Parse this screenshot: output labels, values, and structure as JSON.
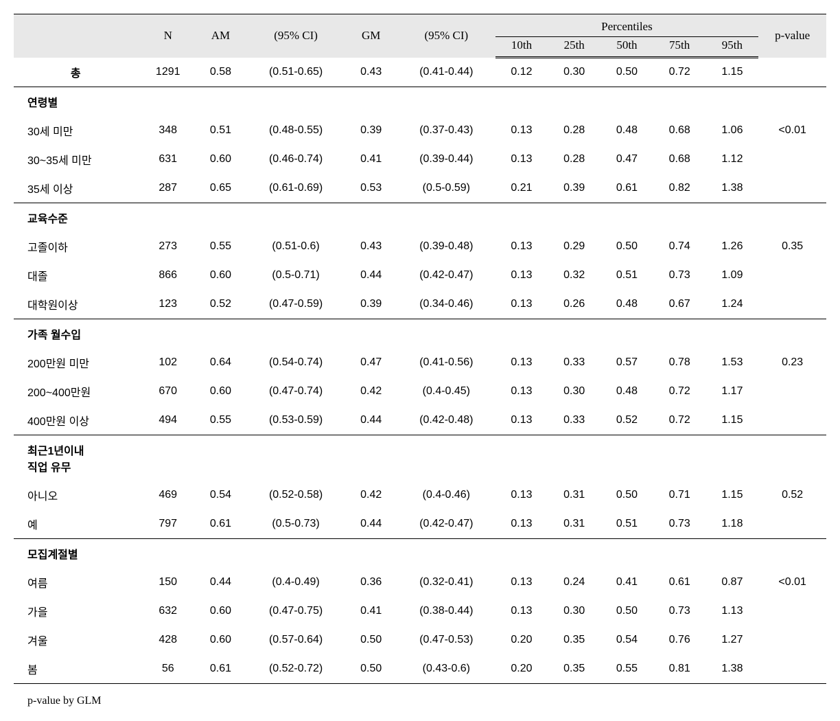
{
  "headers": {
    "blank": "",
    "n": "N",
    "am": "AM",
    "ci1": "(95% CI)",
    "gm": "GM",
    "ci2": "(95% CI)",
    "percentiles": "Percentiles",
    "pvalue": "p-value",
    "p10": "10th",
    "p25": "25th",
    "p50": "50th",
    "p75": "75th",
    "p95": "95th"
  },
  "total": {
    "label": "총",
    "n": "1291",
    "am": "0.58",
    "ci1": "(0.51-0.65)",
    "gm": "0.43",
    "ci2": "(0.41-0.44)",
    "p10": "0.12",
    "p25": "0.30",
    "p50": "0.50",
    "p75": "0.72",
    "p95": "1.15",
    "pvalue": ""
  },
  "sections": [
    {
      "title": "연령별",
      "pvalue": "<0.01",
      "rows": [
        {
          "label": "30세 미만",
          "n": "348",
          "am": "0.51",
          "ci1": "(0.48-0.55)",
          "gm": "0.39",
          "ci2": "(0.37-0.43)",
          "p10": "0.13",
          "p25": "0.28",
          "p50": "0.48",
          "p75": "0.68",
          "p95": "1.06"
        },
        {
          "label": "30~35세 미만",
          "n": "631",
          "am": "0.60",
          "ci1": "(0.46-0.74)",
          "gm": "0.41",
          "ci2": "(0.39-0.44)",
          "p10": "0.13",
          "p25": "0.28",
          "p50": "0.47",
          "p75": "0.68",
          "p95": "1.12"
        },
        {
          "label": "35세 이상",
          "n": "287",
          "am": "0.65",
          "ci1": "(0.61-0.69)",
          "gm": "0.53",
          "ci2": "(0.5-0.59)",
          "p10": "0.21",
          "p25": "0.39",
          "p50": "0.61",
          "p75": "0.82",
          "p95": "1.38"
        }
      ]
    },
    {
      "title": "교육수준",
      "pvalue": "0.35",
      "rows": [
        {
          "label": "고졸이하",
          "n": "273",
          "am": "0.55",
          "ci1": "(0.51-0.6)",
          "gm": "0.43",
          "ci2": "(0.39-0.48)",
          "p10": "0.13",
          "p25": "0.29",
          "p50": "0.50",
          "p75": "0.74",
          "p95": "1.26"
        },
        {
          "label": "대졸",
          "n": "866",
          "am": "0.60",
          "ci1": "(0.5-0.71)",
          "gm": "0.44",
          "ci2": "(0.42-0.47)",
          "p10": "0.13",
          "p25": "0.32",
          "p50": "0.51",
          "p75": "0.73",
          "p95": "1.09"
        },
        {
          "label": "대학원이상",
          "n": "123",
          "am": "0.52",
          "ci1": "(0.47-0.59)",
          "gm": "0.39",
          "ci2": "(0.34-0.46)",
          "p10": "0.13",
          "p25": "0.26",
          "p50": "0.48",
          "p75": "0.67",
          "p95": "1.24"
        }
      ]
    },
    {
      "title": "가족 월수입",
      "pvalue": "0.23",
      "rows": [
        {
          "label": "200만원 미만",
          "n": "102",
          "am": "0.64",
          "ci1": "(0.54-0.74)",
          "gm": "0.47",
          "ci2": "(0.41-0.56)",
          "p10": "0.13",
          "p25": "0.33",
          "p50": "0.57",
          "p75": "0.78",
          "p95": "1.53"
        },
        {
          "label": "200~400만원",
          "n": "670",
          "am": "0.60",
          "ci1": "(0.47-0.74)",
          "gm": "0.42",
          "ci2": "(0.4-0.45)",
          "p10": "0.13",
          "p25": "0.30",
          "p50": "0.48",
          "p75": "0.72",
          "p95": "1.17"
        },
        {
          "label": "400만원 이상",
          "n": "494",
          "am": "0.55",
          "ci1": "(0.53-0.59)",
          "gm": "0.44",
          "ci2": "(0.42-0.48)",
          "p10": "0.13",
          "p25": "0.33",
          "p50": "0.52",
          "p75": "0.72",
          "p95": "1.15"
        }
      ]
    },
    {
      "title": "최근1년이내 직업 유무",
      "title_multiline": true,
      "title_line1": "최근1년이내",
      "title_line2": "직업 유무",
      "pvalue": "0.52",
      "rows": [
        {
          "label": "아니오",
          "n": "469",
          "am": "0.54",
          "ci1": "(0.52-0.58)",
          "gm": "0.42",
          "ci2": "(0.4-0.46)",
          "p10": "0.13",
          "p25": "0.31",
          "p50": "0.50",
          "p75": "0.71",
          "p95": "1.15"
        },
        {
          "label": "예",
          "n": "797",
          "am": "0.61",
          "ci1": "(0.5-0.73)",
          "gm": "0.44",
          "ci2": "(0.42-0.47)",
          "p10": "0.13",
          "p25": "0.31",
          "p50": "0.51",
          "p75": "0.73",
          "p95": "1.18"
        }
      ]
    },
    {
      "title": "모집계절별",
      "pvalue": "<0.01",
      "rows": [
        {
          "label": "여름",
          "n": "150",
          "am": "0.44",
          "ci1": "(0.4-0.49)",
          "gm": "0.36",
          "ci2": "(0.32-0.41)",
          "p10": "0.13",
          "p25": "0.24",
          "p50": "0.41",
          "p75": "0.61",
          "p95": "0.87"
        },
        {
          "label": "가을",
          "n": "632",
          "am": "0.60",
          "ci1": "(0.47-0.75)",
          "gm": "0.41",
          "ci2": "(0.38-0.44)",
          "p10": "0.13",
          "p25": "0.30",
          "p50": "0.50",
          "p75": "0.73",
          "p95": "1.13"
        },
        {
          "label": "겨울",
          "n": "428",
          "am": "0.60",
          "ci1": "(0.57-0.64)",
          "gm": "0.50",
          "ci2": "(0.47-0.53)",
          "p10": "0.20",
          "p25": "0.35",
          "p50": "0.54",
          "p75": "0.76",
          "p95": "1.27"
        },
        {
          "label": "봄",
          "n": "56",
          "am": "0.61",
          "ci1": "(0.52-0.72)",
          "gm": "0.50",
          "ci2": "(0.43-0.6)",
          "p10": "0.20",
          "p25": "0.35",
          "p50": "0.55",
          "p75": "0.81",
          "p95": "1.38"
        }
      ]
    }
  ],
  "footnote": "p-value by GLM"
}
